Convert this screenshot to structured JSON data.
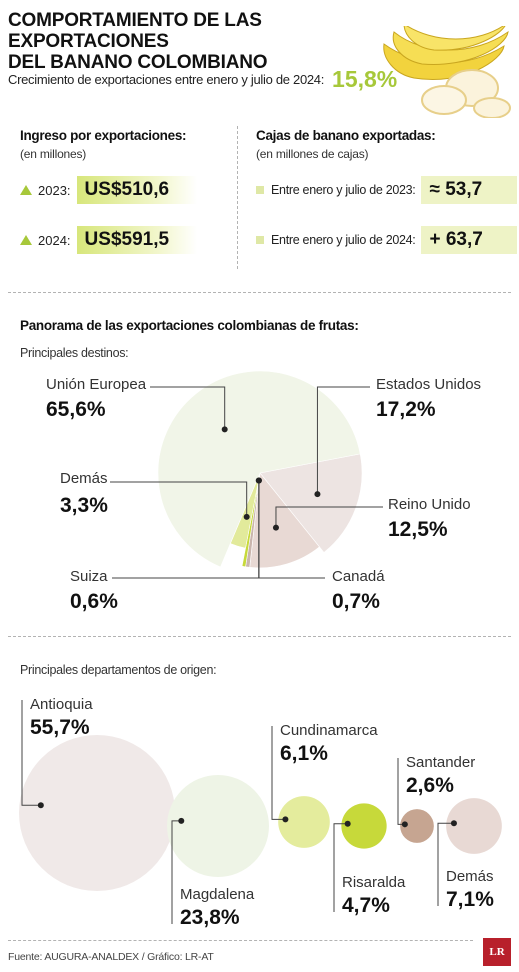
{
  "header": {
    "title_line1": "COMPORTAMIENTO DE LAS EXPORTACIONES",
    "title_line2": "DEL BANANO COLOMBIANO",
    "growth_label": "Crecimiento de exportaciones entre enero y julio de 2024:",
    "growth_value": "15,8%"
  },
  "income": {
    "title": "Ingreso por exportaciones:",
    "subtitle": "(en millones)",
    "rows": [
      {
        "year": "2023:",
        "value": "US$510,6"
      },
      {
        "year": "2024:",
        "value": "US$591,5"
      }
    ]
  },
  "boxes": {
    "title": "Cajas de banano exportadas:",
    "subtitle": "(en millones de cajas)",
    "rows": [
      {
        "label": "Entre enero y julio de 2023:",
        "value": "≈ 53,7"
      },
      {
        "label": "Entre enero y julio de 2024:",
        "value": "+ 63,7"
      }
    ]
  },
  "panorama": {
    "title": "Panorama de las exportaciones colombianas de frutas:",
    "subtitle": "Principales destinos:"
  },
  "origin": {
    "subtitle": "Principales departamentos de origen:"
  },
  "colors": {
    "accent": "#a7c83a",
    "pie_eu": "#f1f5e8",
    "pie_us": "#ede4e2",
    "pie_uk": "#e8d9d4",
    "pie_other": "#e2ea9b",
    "pie_swiss": "#c7d93a"
  },
  "chart_data": [
    {
      "type": "pie",
      "slices": [
        {
          "label": "Unión Europea",
          "value": 65.6,
          "display": "65,6%"
        },
        {
          "label": "Estados Unidos",
          "value": 17.2,
          "display": "17,2%"
        },
        {
          "label": "Reino Unido",
          "value": 12.5,
          "display": "12,5%"
        },
        {
          "label": "Canadá",
          "value": 0.7,
          "display": "0,7%"
        },
        {
          "label": "Suiza",
          "value": 0.6,
          "display": "0,6%"
        },
        {
          "label": "Demás",
          "value": 3.3,
          "display": "3,3%"
        }
      ]
    },
    {
      "type": "bubble",
      "items": [
        {
          "label": "Antioquia",
          "value": 55.7,
          "display": "55,7%",
          "color": "#f0e9e8"
        },
        {
          "label": "Magdalena",
          "value": 23.8,
          "display": "23,8%",
          "color": "#eef4e6"
        },
        {
          "label": "Cundinamarca",
          "value": 6.1,
          "display": "6,1%",
          "color": "#e4ec9d"
        },
        {
          "label": "Risaralda",
          "value": 4.7,
          "display": "4,7%",
          "color": "#c7d93a"
        },
        {
          "label": "Santander",
          "value": 2.6,
          "display": "2,6%",
          "color": "#c6a591"
        },
        {
          "label": "Demás",
          "value": 7.1,
          "display": "7,1%",
          "color": "#e8d9d4"
        }
      ]
    }
  ],
  "footer": {
    "source": "Fuente: AUGURA-ANALDEX / Gráfico: LR-AT",
    "logo": "LR"
  }
}
